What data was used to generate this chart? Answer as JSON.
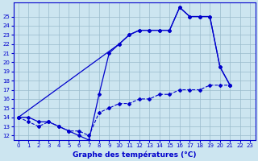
{
  "title": "Graphe des températures (°C)",
  "bg_color": "#cce5f0",
  "line_color": "#0000cc",
  "grid_color": "#99bbcc",
  "ylim": [
    11.5,
    26.5
  ],
  "yticks": [
    12,
    13,
    14,
    15,
    16,
    17,
    18,
    19,
    20,
    21,
    22,
    23,
    24,
    25
  ],
  "xlim": [
    -0.5,
    23.5
  ],
  "xticks": [
    0,
    1,
    2,
    3,
    4,
    5,
    6,
    7,
    8,
    9,
    10,
    11,
    12,
    13,
    14,
    15,
    16,
    17,
    18,
    19,
    20,
    21,
    22,
    23
  ],
  "temp_obs_x": [
    0,
    1,
    2,
    3,
    4,
    5,
    6,
    7,
    8,
    9,
    10,
    11,
    12,
    13,
    14,
    15,
    16,
    17,
    18,
    19,
    20,
    21
  ],
  "temp_obs_y": [
    14,
    14,
    13.5,
    13.5,
    13,
    12.5,
    12,
    11.5,
    16.5,
    21,
    22,
    23,
    23.5,
    23.5,
    23.5,
    23.5,
    26,
    25,
    25,
    25,
    19.5,
    17.5
  ],
  "temp_upper_x": [
    0,
    10,
    11,
    12,
    13,
    14,
    15,
    16,
    17,
    18,
    19,
    20,
    21
  ],
  "temp_upper_y": [
    14,
    22,
    23,
    23.5,
    23.5,
    23.5,
    23.5,
    26,
    25,
    25,
    25,
    19.5,
    17.5
  ],
  "temp_lower_x": [
    0,
    1,
    2,
    3,
    4,
    5,
    6,
    7,
    8,
    9,
    10,
    11,
    12,
    13,
    14,
    15,
    16,
    17,
    18,
    19,
    20,
    21
  ],
  "temp_lower_y": [
    14,
    13.5,
    13,
    13.5,
    13,
    12.5,
    12.5,
    12,
    14.5,
    15,
    15.5,
    15.5,
    16,
    16,
    16.5,
    16.5,
    17,
    17,
    17,
    17.5,
    17.5,
    17.5
  ],
  "xlabel_fontsize": 6.5,
  "tick_fontsize": 5.0
}
